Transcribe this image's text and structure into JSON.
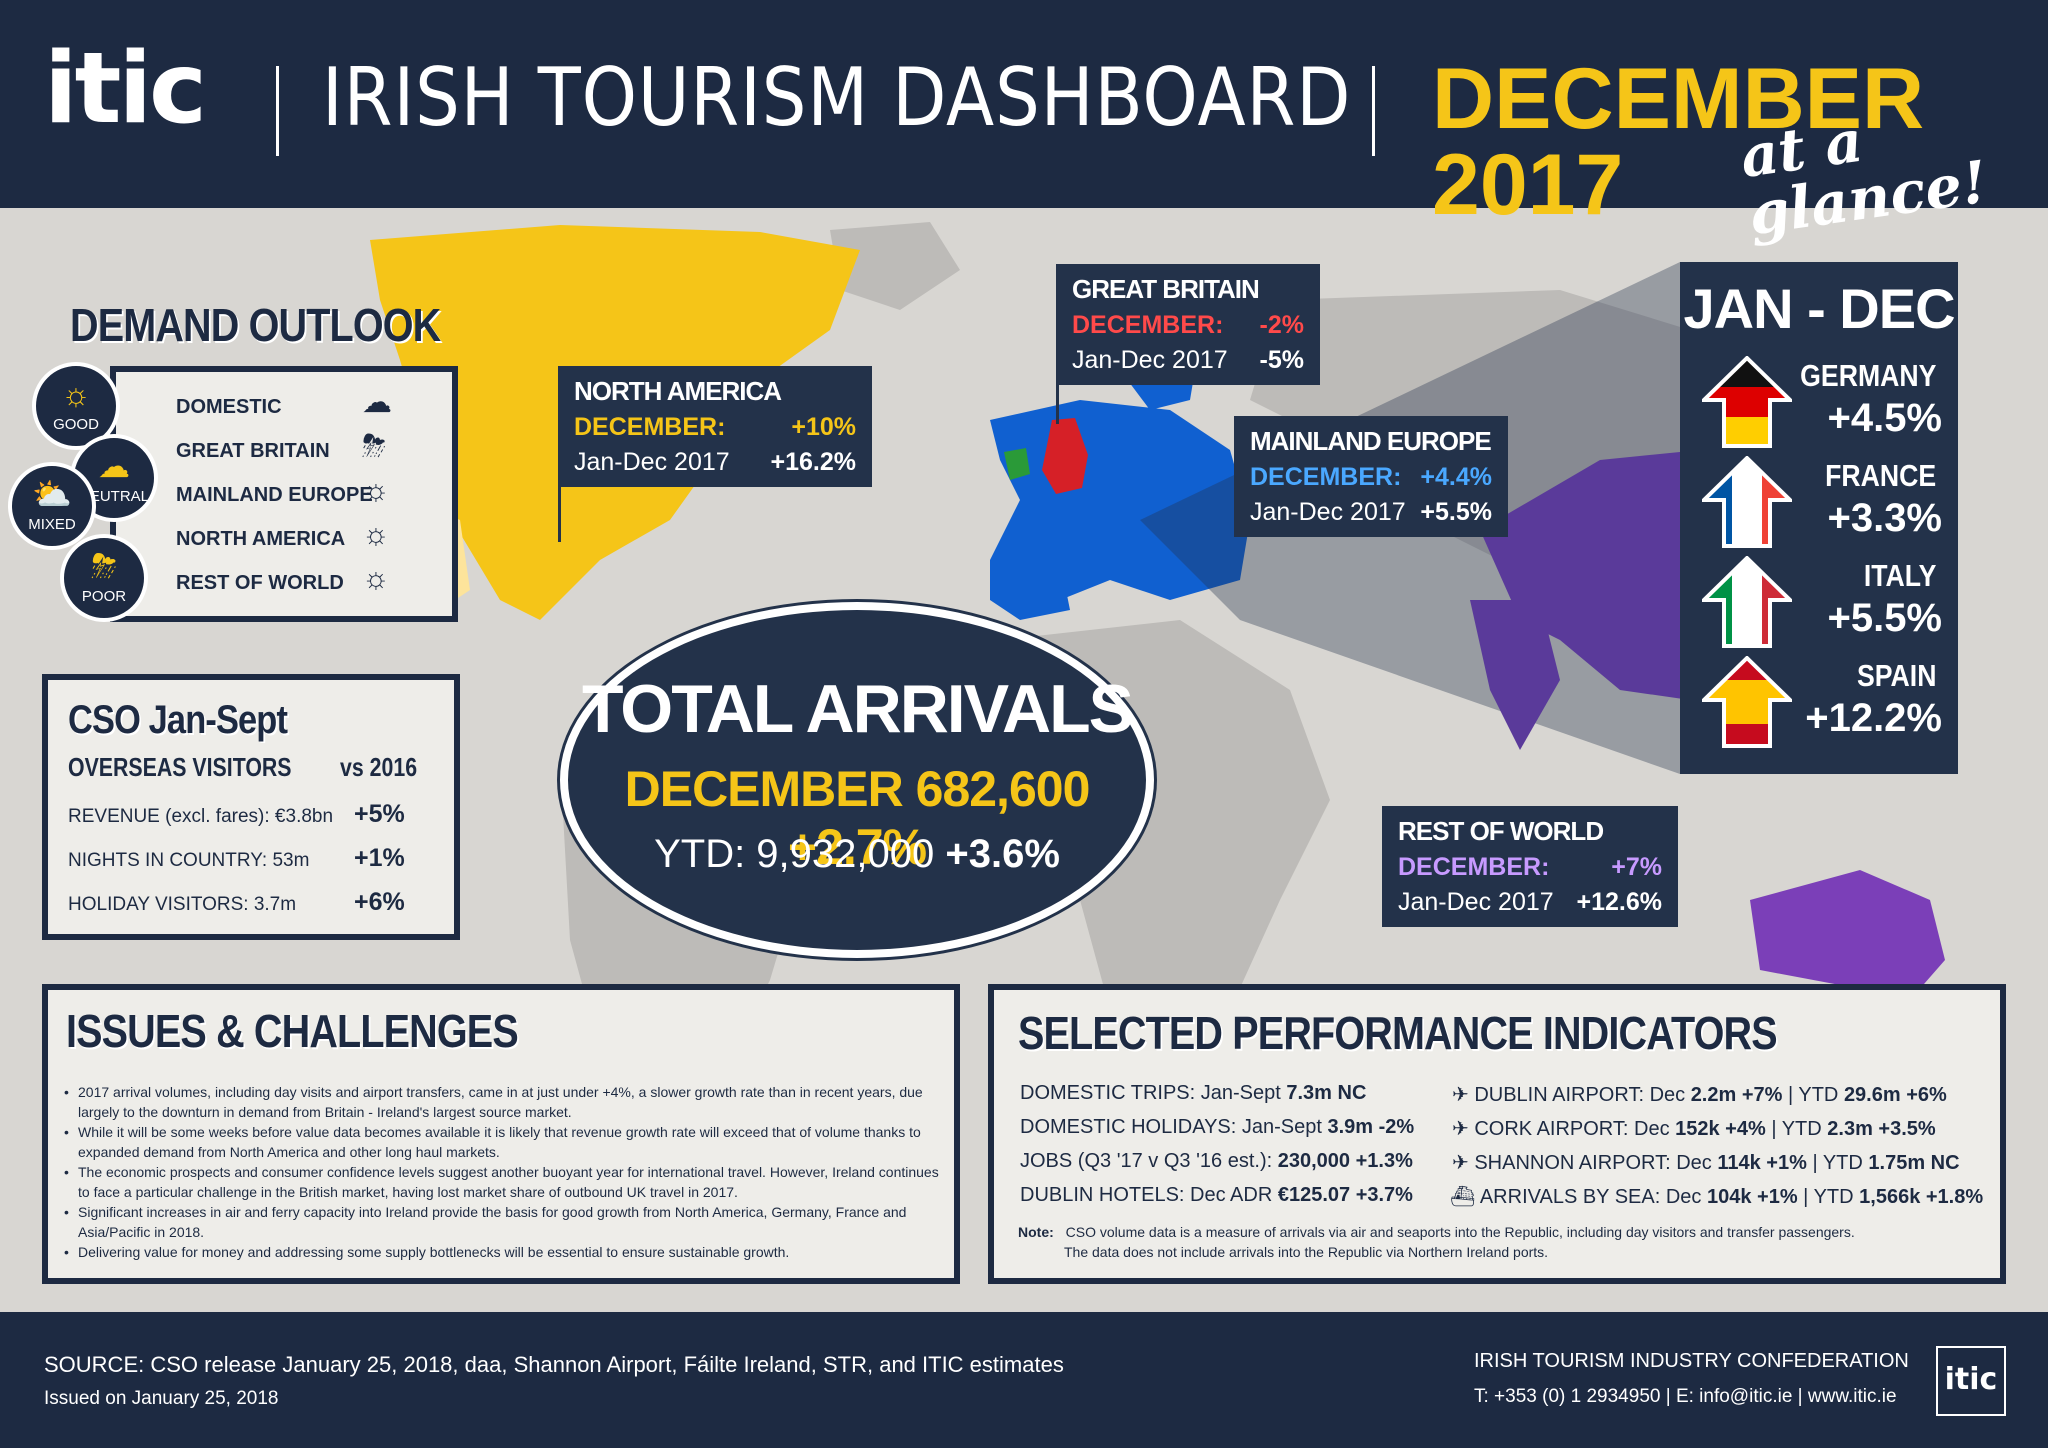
{
  "header": {
    "logo": "itic",
    "title": "IRISH TOURISM DASHBOARD",
    "date": "DECEMBER 2017",
    "tagline": "at a glance!"
  },
  "demand_outlook": {
    "title": "DEMAND OUTLOOK",
    "legend": [
      {
        "label": "GOOD",
        "icon": "sun-icon"
      },
      {
        "label": "NEUTRAL",
        "icon": "cloud-icon"
      },
      {
        "label": "MIXED",
        "icon": "sun-cloud-icon"
      },
      {
        "label": "POOR",
        "icon": "storm-icon"
      }
    ],
    "rows": [
      {
        "label": "DOMESTIC",
        "outlook": "cloud-icon"
      },
      {
        "label": "GREAT BRITAIN",
        "outlook": "storm-icon"
      },
      {
        "label": "MAINLAND EUROPE",
        "outlook": "sun-icon"
      },
      {
        "label": "NORTH AMERICA",
        "outlook": "sun-icon"
      },
      {
        "label": "REST OF WORLD",
        "outlook": "sun-icon"
      }
    ]
  },
  "cso": {
    "title": "CSO Jan-Sept",
    "subtitle": "OVERSEAS VISITORS",
    "compare": "vs 2016",
    "rows": [
      {
        "label": "REVENUE (excl. fares): €3.8bn",
        "value": "+5%"
      },
      {
        "label": "NIGHTS IN COUNTRY: 53m",
        "value": "+1%"
      },
      {
        "label": "HOLIDAY VISITORS: 3.7m",
        "value": "+6%"
      }
    ]
  },
  "regions": {
    "north_america": {
      "title": "NORTH AMERICA",
      "dec_label": "DECEMBER:",
      "dec_value": "+10%",
      "ytd_label": "Jan-Dec 2017",
      "ytd_value": "+16.2%"
    },
    "great_britain": {
      "title": "GREAT BRITAIN",
      "dec_label": "DECEMBER:",
      "dec_value": "-2%",
      "ytd_label": "Jan-Dec 2017",
      "ytd_value": "-5%"
    },
    "mainland_europe": {
      "title": "MAINLAND EUROPE",
      "dec_label": "DECEMBER:",
      "dec_value": "+4.4%",
      "ytd_label": "Jan-Dec 2017",
      "ytd_value": "+5.5%"
    },
    "rest_of_world": {
      "title": "REST OF WORLD",
      "dec_label": "DECEMBER:",
      "dec_value": "+7%",
      "ytd_label": "Jan-Dec 2017",
      "ytd_value": "+12.6%"
    }
  },
  "total_arrivals": {
    "title": "TOTAL ARRIVALS",
    "december": "DECEMBER 682,600 +2.7%",
    "ytd_label": "YTD: 9,932,000",
    "ytd_change": "+3.6%"
  },
  "jan_dec": {
    "title": "JAN - DEC",
    "countries": [
      {
        "name": "GERMANY",
        "value": "+4.5%",
        "colors": [
          "#111111",
          "#dd0000",
          "#ffce00"
        ]
      },
      {
        "name": "FRANCE",
        "value": "+3.3%",
        "colors": [
          "#0055a4",
          "#ffffff",
          "#ef4135"
        ]
      },
      {
        "name": "ITALY",
        "value": "+5.5%",
        "colors": [
          "#009246",
          "#ffffff",
          "#ce2b37"
        ]
      },
      {
        "name": "SPAIN",
        "value": "+12.2%",
        "colors": [
          "#c60b1e",
          "#ffc400",
          "#c60b1e"
        ]
      }
    ]
  },
  "issues": {
    "title": "ISSUES & CHALLENGES",
    "items": [
      "2017 arrival volumes, including day visits and airport transfers, came in at just under +4%, a slower growth rate than in recent years, due largely to the downturn in demand from Britain - Ireland's largest source market.",
      "While it will be some weeks before value data becomes available it is likely that revenue growth rate will exceed that of volume thanks to expanded demand from North America and other long haul markets.",
      "The economic prospects and consumer confidence levels suggest another buoyant year for international travel. However, Ireland continues to face a particular challenge in the British market, having lost market share of outbound UK travel in 2017.",
      "Significant increases in air and ferry capacity into Ireland provide the basis for good growth from North America, Germany, France and Asia/Pacific in 2018.",
      "Delivering value for money and addressing some supply bottlenecks will be essential to ensure sustainable growth."
    ]
  },
  "performance": {
    "title": "SELECTED PERFORMANCE INDICATORS",
    "left": [
      {
        "label": "DOMESTIC TRIPS: Jan-Sept ",
        "value": "7.3m NC"
      },
      {
        "label": "DOMESTIC HOLIDAYS: Jan-Sept ",
        "value": "3.9m -2%"
      },
      {
        "label": "JOBS (Q3 '17 v Q3 '16 est.): ",
        "value": "230,000 +1.3%"
      },
      {
        "label": "DUBLIN HOTELS: Dec ADR ",
        "value": "€125.07 +3.7%"
      }
    ],
    "right": [
      {
        "icon": "plane-icon",
        "label": "DUBLIN AIRPORT:  Dec ",
        "dec": "2.2m +7%",
        "ytd_label": "YTD ",
        "ytd": "29.6m +6%"
      },
      {
        "icon": "plane-icon",
        "label": "CORK AIRPORT:  Dec ",
        "dec": "152k +4%",
        "ytd_label": "YTD ",
        "ytd": "2.3m +3.5%"
      },
      {
        "icon": "plane-icon",
        "label": "SHANNON AIRPORT:  Dec ",
        "dec": "114k  +1%",
        "ytd_label": "YTD ",
        "ytd": "1.75m NC"
      },
      {
        "icon": "ship-icon",
        "label": "ARRIVALS BY SEA: Dec ",
        "dec": "104k +1%",
        "ytd_label": "YTD ",
        "ytd": "1,566k +1.8%"
      }
    ],
    "note_label": "Note:",
    "note_line1": "CSO volume data is a measure of arrivals via air and seaports into the Republic, including day visitors and transfer passengers.",
    "note_line2": "The data does not include arrivals into the Republic via Northern Ireland ports."
  },
  "footer": {
    "source": "SOURCE: CSO release January 25, 2018, daa, Shannon Airport, Fáilte Ireland, STR, and ITIC estimates",
    "issued": "Issued on January 25, 2018",
    "org": "IRISH TOURISM INDUSTRY CONFEDERATION",
    "contact": "T: +353 (0) 1 2934950 | E: info@itic.ie | www.itic.ie",
    "logo": "itic"
  }
}
